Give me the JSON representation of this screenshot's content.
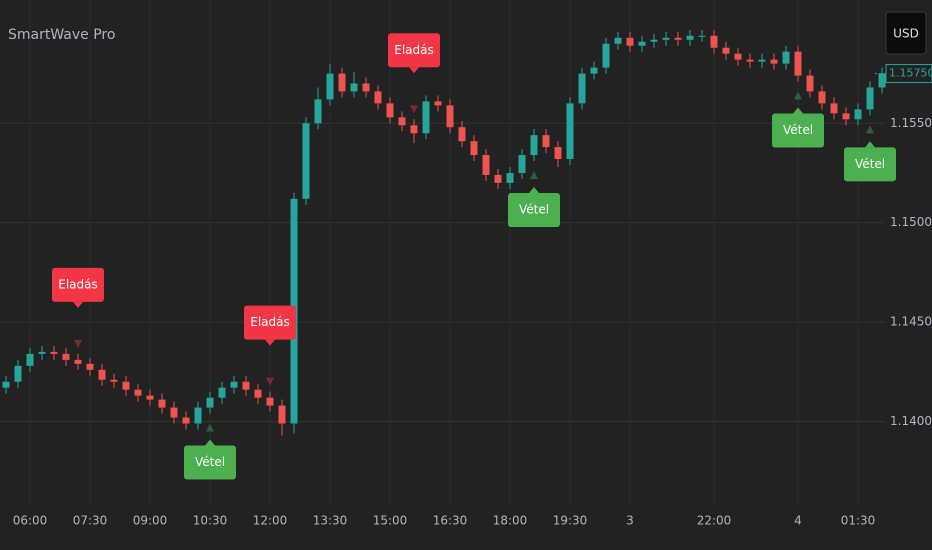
{
  "chart_data": {
    "type": "candlestick",
    "title": "SmartWave Pro",
    "currency": "USD",
    "categories": [
      null,
      null,
      "06:00",
      null,
      null,
      null,
      null,
      "07:30",
      null,
      null,
      null,
      null,
      "09:00",
      null,
      null,
      null,
      null,
      "10:30",
      null,
      null,
      null,
      null,
      "12:00",
      null,
      null,
      null,
      null,
      "13:30",
      null,
      null,
      null,
      null,
      "15:00",
      null,
      null,
      null,
      null,
      "16:30",
      null,
      null,
      null,
      null,
      "18:00",
      null,
      null,
      null,
      null,
      "19:30",
      null,
      null,
      null,
      null,
      "3",
      null,
      null,
      null,
      null,
      null,
      null,
      "22:00",
      null,
      null,
      null,
      null,
      null,
      null,
      "4",
      null,
      null,
      null,
      null,
      "01:30",
      null,
      null
    ],
    "open": [
      1.1417,
      1.142,
      1.1428,
      1.1434,
      1.1435,
      1.1434,
      1.1431,
      1.1429,
      1.1426,
      1.1421,
      1.142,
      1.1416,
      1.1413,
      1.1411,
      1.1407,
      1.1402,
      1.1399,
      1.1407,
      1.1412,
      1.1417,
      1.142,
      1.1416,
      1.1412,
      1.1408,
      1.1399,
      1.1512,
      1.155,
      1.1562,
      1.1575,
      1.1566,
      1.157,
      1.1566,
      1.156,
      1.1553,
      1.1549,
      1.1545,
      1.1561,
      1.1559,
      1.1548,
      1.1541,
      1.1534,
      1.1524,
      1.152,
      1.1525,
      1.1534,
      1.1544,
      1.1538,
      1.1532,
      1.156,
      1.1575,
      1.1578,
      1.159,
      1.1593,
      1.1589,
      1.1591,
      1.1592,
      1.1593,
      1.1592,
      1.1594,
      1.1594,
      1.1588,
      1.1585,
      1.1582,
      1.1581,
      1.1582,
      1.158,
      1.1586,
      1.1574,
      1.1566,
      1.156,
      1.1555,
      1.1552,
      1.1557,
      1.1568
    ],
    "high": [
      1.1423,
      1.1431,
      1.1437,
      1.1438,
      1.1438,
      1.1437,
      1.1434,
      1.1432,
      1.1429,
      1.1424,
      1.1423,
      1.1419,
      1.1416,
      1.1414,
      1.141,
      1.1405,
      1.141,
      1.1415,
      1.142,
      1.1423,
      1.1423,
      1.1419,
      1.1415,
      1.1411,
      1.1515,
      1.1553,
      1.1568,
      1.158,
      1.1578,
      1.1576,
      1.1573,
      1.1569,
      1.1563,
      1.1556,
      1.1552,
      1.1564,
      1.1564,
      1.1562,
      1.1551,
      1.1544,
      1.1537,
      1.1527,
      1.1528,
      1.1537,
      1.1547,
      1.1547,
      1.1541,
      1.1563,
      1.1578,
      1.1581,
      1.1593,
      1.1596,
      1.1596,
      1.1594,
      1.1595,
      1.1596,
      1.1596,
      1.1597,
      1.1597,
      1.1597,
      1.1591,
      1.1588,
      1.1585,
      1.1585,
      1.1585,
      1.1589,
      1.1589,
      1.1577,
      1.1569,
      1.1563,
      1.1558,
      1.156,
      1.1571,
      1.1578
    ],
    "low": [
      1.1414,
      1.1417,
      1.1425,
      1.1431,
      1.1431,
      1.1428,
      1.1426,
      1.1423,
      1.1418,
      1.1417,
      1.1413,
      1.141,
      1.1408,
      1.1404,
      1.1399,
      1.1396,
      1.1396,
      1.1404,
      1.1409,
      1.1414,
      1.1413,
      1.1409,
      1.1405,
      1.1393,
      1.1394,
      1.1509,
      1.1547,
      1.1559,
      1.1563,
      1.1563,
      1.1563,
      1.1557,
      1.155,
      1.1546,
      1.154,
      1.1542,
      1.1556,
      1.1545,
      1.1538,
      1.1531,
      1.1521,
      1.1517,
      1.1517,
      1.1522,
      1.1531,
      1.1535,
      1.1528,
      1.1529,
      1.1557,
      1.1572,
      1.1575,
      1.1587,
      1.1586,
      1.1586,
      1.1588,
      1.1589,
      1.1589,
      1.1589,
      1.1591,
      1.1585,
      1.1582,
      1.1579,
      1.1578,
      1.1578,
      1.1577,
      1.1577,
      1.1571,
      1.1563,
      1.1557,
      1.1552,
      1.1549,
      1.1549,
      1.1554,
      1.1565
    ],
    "close": [
      1.142,
      1.1428,
      1.1434,
      1.1435,
      1.1434,
      1.1431,
      1.1429,
      1.1426,
      1.1421,
      1.142,
      1.1416,
      1.1413,
      1.1411,
      1.1407,
      1.1402,
      1.1399,
      1.1407,
      1.1412,
      1.1417,
      1.142,
      1.1416,
      1.1412,
      1.1408,
      1.1399,
      1.1512,
      1.155,
      1.1562,
      1.1575,
      1.1566,
      1.157,
      1.1566,
      1.156,
      1.1553,
      1.1549,
      1.1545,
      1.1561,
      1.1559,
      1.1548,
      1.1541,
      1.1534,
      1.1524,
      1.152,
      1.1525,
      1.1534,
      1.1544,
      1.1538,
      1.1532,
      1.156,
      1.1575,
      1.1578,
      1.159,
      1.1593,
      1.1589,
      1.1591,
      1.1592,
      1.1593,
      1.1592,
      1.1594,
      1.1594,
      1.1588,
      1.1585,
      1.1582,
      1.1581,
      1.1582,
      1.158,
      1.1586,
      1.1574,
      1.1566,
      1.156,
      1.1555,
      1.1552,
      1.1557,
      1.1568,
      1.1575
    ],
    "signals": [
      null,
      null,
      null,
      null,
      null,
      null,
      "Eladás",
      null,
      null,
      null,
      null,
      null,
      null,
      null,
      null,
      null,
      null,
      "Vétel",
      null,
      null,
      null,
      null,
      "Eladás",
      null,
      null,
      null,
      null,
      null,
      null,
      null,
      null,
      null,
      null,
      null,
      "Eladás",
      null,
      null,
      null,
      null,
      null,
      null,
      null,
      null,
      null,
      "Vétel",
      null,
      null,
      null,
      null,
      null,
      null,
      null,
      null,
      null,
      null,
      null,
      null,
      null,
      null,
      null,
      null,
      null,
      null,
      null,
      null,
      null,
      "Vétel",
      null,
      null,
      null,
      null,
      null,
      "Vétel",
      null
    ],
    "signal_colors": {
      "Eladás": "#f23645",
      "Vétel": "#4caf50"
    },
    "signal_placement": {
      "Eladás": "above",
      "Vétel": "below"
    },
    "up_color": "#26a69a",
    "down_color": "#ef5350",
    "ylim": [
      1.1358,
      1.1612
    ],
    "yticks": [
      {
        "value": 1.14,
        "label": "1.14000"
      },
      {
        "value": 1.145,
        "label": "1.14500"
      },
      {
        "value": 1.15,
        "label": "1.15000"
      },
      {
        "value": 1.155,
        "label": "1.15500"
      }
    ],
    "last_price": {
      "value": 1.1575,
      "label": "1.15750"
    },
    "grid": true
  }
}
